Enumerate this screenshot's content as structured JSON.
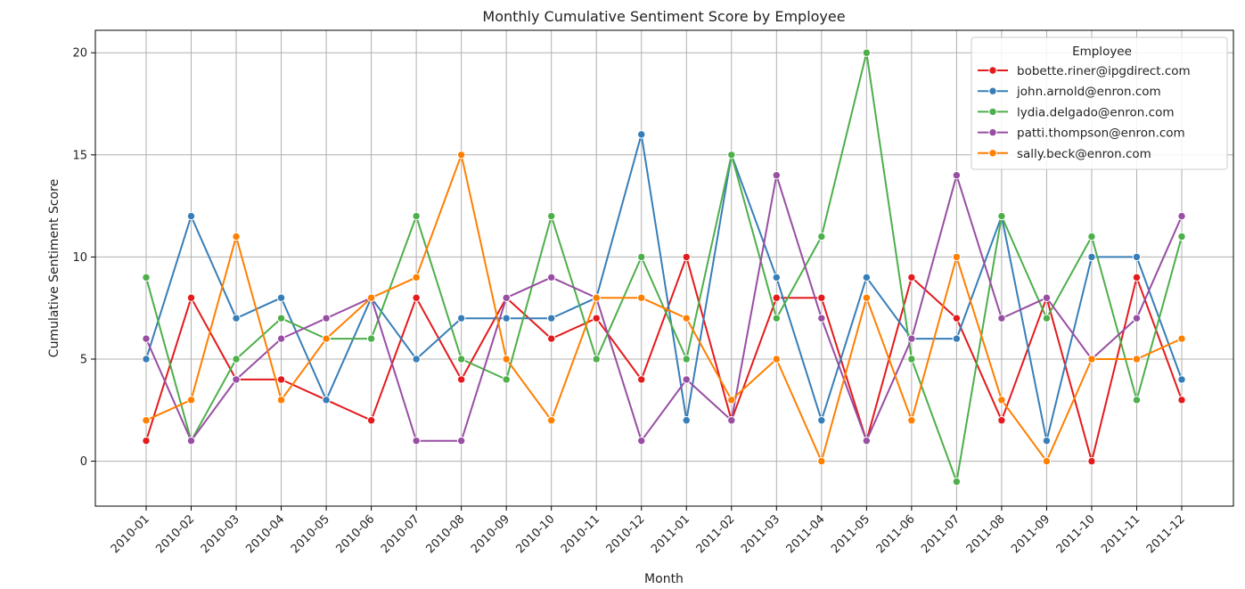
{
  "chart_data": {
    "type": "line",
    "title": "Monthly Cumulative Sentiment Score by Employee",
    "xlabel": "Month",
    "ylabel": "Cumulative Sentiment Score",
    "categories": [
      "2010-01",
      "2010-02",
      "2010-03",
      "2010-04",
      "2010-05",
      "2010-06",
      "2010-07",
      "2010-08",
      "2010-09",
      "2010-10",
      "2010-11",
      "2010-12",
      "2011-01",
      "2011-02",
      "2011-03",
      "2011-04",
      "2011-05",
      "2011-06",
      "2011-07",
      "2011-08",
      "2011-09",
      "2011-10",
      "2011-11",
      "2011-12"
    ],
    "ylim": [
      -2.2,
      21.1
    ],
    "yticks": [
      0,
      5,
      10,
      15,
      20
    ],
    "grid": true,
    "legend": {
      "title": "Employee",
      "placement": "top-right"
    },
    "series": [
      {
        "name": "bobette.riner@ipgdirect.com",
        "color": "#e41a1c",
        "values": [
          1,
          8,
          4,
          4,
          3,
          2,
          8,
          4,
          8,
          6,
          7,
          4,
          10,
          2,
          8,
          8,
          1,
          9,
          7,
          2,
          8,
          0,
          9,
          3
        ]
      },
      {
        "name": "john.arnold@enron.com",
        "color": "#377eb8",
        "values": [
          5,
          12,
          7,
          8,
          3,
          8,
          5,
          7,
          7,
          7,
          8,
          16,
          2,
          15,
          9,
          2,
          9,
          6,
          6,
          12,
          1,
          10,
          10,
          4
        ]
      },
      {
        "name": "lydia.delgado@enron.com",
        "color": "#4daf4a",
        "values": [
          9,
          1,
          5,
          7,
          6,
          6,
          12,
          5,
          4,
          12,
          5,
          10,
          5,
          15,
          7,
          11,
          20,
          5,
          -1,
          12,
          7,
          11,
          3,
          11
        ]
      },
      {
        "name": "patti.thompson@enron.com",
        "color": "#984ea3",
        "values": [
          6,
          1,
          4,
          6,
          7,
          8,
          1,
          1,
          8,
          9,
          8,
          1,
          4,
          2,
          14,
          7,
          1,
          6,
          14,
          7,
          8,
          5,
          7,
          12
        ]
      },
      {
        "name": "sally.beck@enron.com",
        "color": "#ff7f00",
        "values": [
          2,
          3,
          11,
          3,
          6,
          8,
          9,
          15,
          5,
          2,
          8,
          8,
          7,
          3,
          5,
          0,
          8,
          2,
          10,
          3,
          0,
          5,
          5,
          6
        ]
      }
    ]
  }
}
